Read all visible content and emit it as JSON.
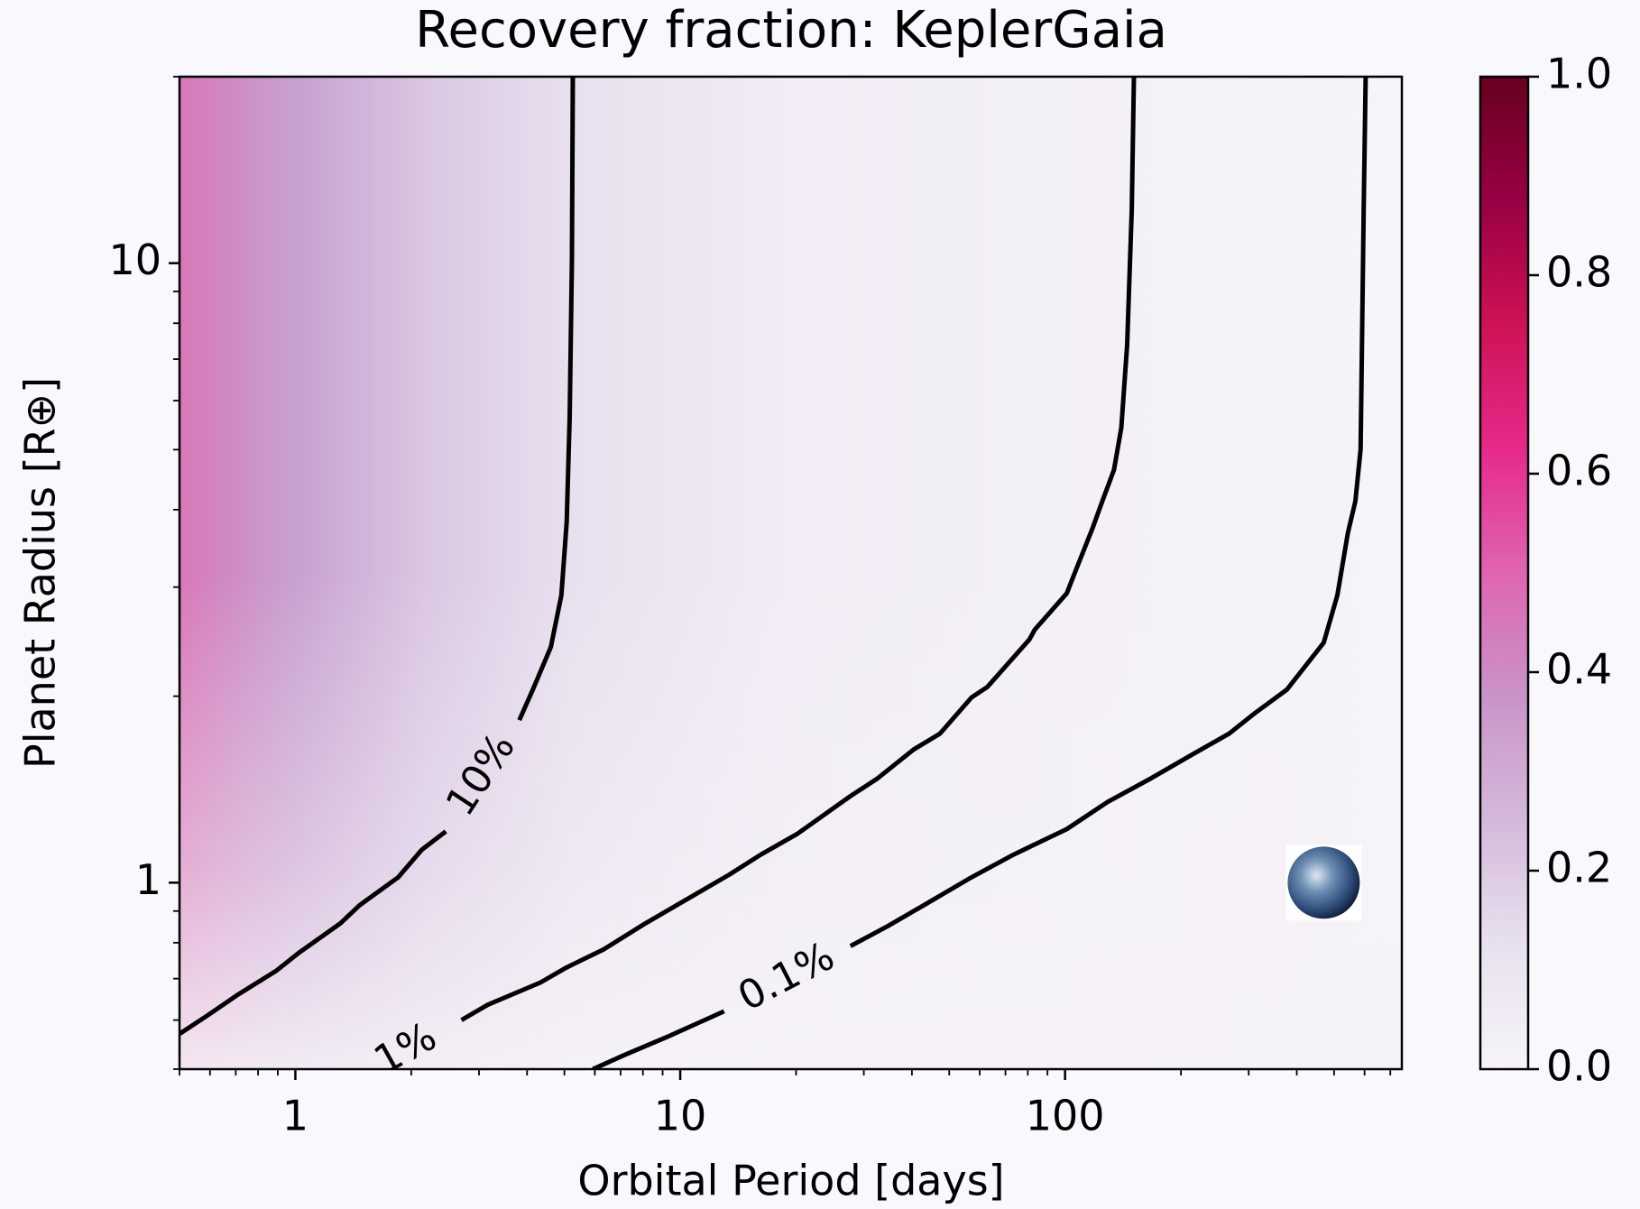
{
  "chart_data": {
    "type": "contour",
    "title": "Recovery fraction: KeplerGaia",
    "xlabel": "Orbital Period [days]",
    "ylabel": "Planet Radius [R⊕]",
    "xscale": "log",
    "yscale": "log",
    "xlim": [
      0.5,
      750
    ],
    "ylim": [
      0.5,
      20
    ],
    "xticks": [
      1,
      10,
      100
    ],
    "yticks": [
      1,
      10
    ],
    "clim": [
      0,
      1
    ],
    "cticks": [
      {
        "value": 0,
        "label": "0.0"
      },
      0.2,
      0.4,
      0.6,
      0.8,
      {
        "value": 1,
        "label": "1.0"
      }
    ],
    "colormap": [
      "#f7f4f9",
      "#e7e1ef",
      "#d4b9da",
      "#c994c7",
      "#df65b0",
      "#e7298a",
      "#ce1256",
      "#980043",
      "#67001f"
    ],
    "line_color": "#000000",
    "series": [
      {
        "name": "10%",
        "x": [
          0.5,
          0.59,
          0.71,
          0.89,
          1.02,
          1.31,
          1.47,
          1.85,
          2.13,
          2.46,
          null,
          3.82,
          4.14,
          4.61,
          4.91,
          5.07,
          5.16,
          5.23,
          5.26
        ],
        "values": [
          0.57,
          0.61,
          0.66,
          0.72,
          0.77,
          0.86,
          0.92,
          1.02,
          1.13,
          1.21,
          null,
          1.83,
          2.05,
          2.4,
          2.91,
          3.82,
          5.63,
          10.1,
          20
        ]
      },
      {
        "name": "1%",
        "x": [
          1.4,
          null,
          2.7,
          3.16,
          4.33,
          5.07,
          6.32,
          8.13,
          10.4,
          13.4,
          16.2,
          20.2,
          27.7,
          32.4,
          40.4,
          47.3,
          57.1,
          62.8,
          80.8,
          83.4,
          101,
          107,
          118,
          125,
          134,
          140,
          145,
          149,
          151
        ],
        "values": [
          0.478,
          null,
          0.6,
          0.635,
          0.69,
          0.73,
          0.78,
          0.86,
          0.94,
          1.03,
          1.11,
          1.2,
          1.38,
          1.47,
          1.64,
          1.74,
          1.99,
          2.07,
          2.47,
          2.56,
          2.93,
          3.21,
          3.74,
          4.13,
          4.64,
          5.42,
          7.39,
          12.2,
          20
        ]
      },
      {
        "name": "0.1%",
        "x": [
          5.93,
          7.16,
          9.21,
          13.0,
          null,
          27.7,
          34.5,
          43.0,
          57.1,
          73.5,
          101,
          129,
          166,
          214,
          267,
          312,
          377,
          470,
          510,
          543,
          568,
          586,
          597,
          604
        ],
        "values": [
          0.5,
          0.527,
          0.563,
          0.62,
          null,
          0.79,
          0.85,
          0.92,
          1.02,
          1.11,
          1.22,
          1.35,
          1.47,
          1.61,
          1.74,
          1.88,
          2.05,
          2.44,
          2.91,
          3.67,
          4.13,
          5.01,
          12.2,
          20
        ]
      }
    ],
    "earth": {
      "x": 470,
      "y": 1
    }
  }
}
